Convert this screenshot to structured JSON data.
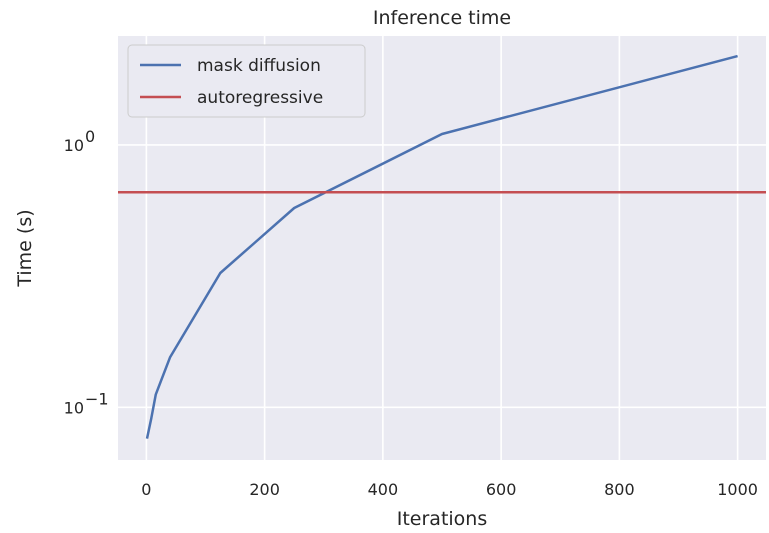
{
  "chart_data": {
    "type": "line",
    "title": "Inference time",
    "xlabel": "Iterations",
    "ylabel": "Time (s)",
    "xscale": "linear",
    "yscale": "log",
    "xlim": [
      -48,
      1048
    ],
    "ylim": [
      0.063,
      2.6
    ],
    "xticks": [
      0,
      200,
      400,
      600,
      800,
      1000
    ],
    "yticks": [
      {
        "value": 0.1,
        "base": "10",
        "exp": "−1"
      },
      {
        "value": 1,
        "base": "10",
        "exp": "0"
      }
    ],
    "grid": true,
    "legend_position": "upper left",
    "series": [
      {
        "name": "mask diffusion",
        "color": "#4c72b0",
        "x": [
          1,
          8,
          16,
          40,
          125,
          250,
          500,
          1000
        ],
        "y": [
          0.076,
          0.09,
          0.112,
          0.155,
          0.325,
          0.575,
          1.1,
          2.18
        ]
      },
      {
        "name": "autoregressive",
        "color": "#c44e52",
        "kind": "horizontal",
        "y": 0.66
      }
    ]
  }
}
